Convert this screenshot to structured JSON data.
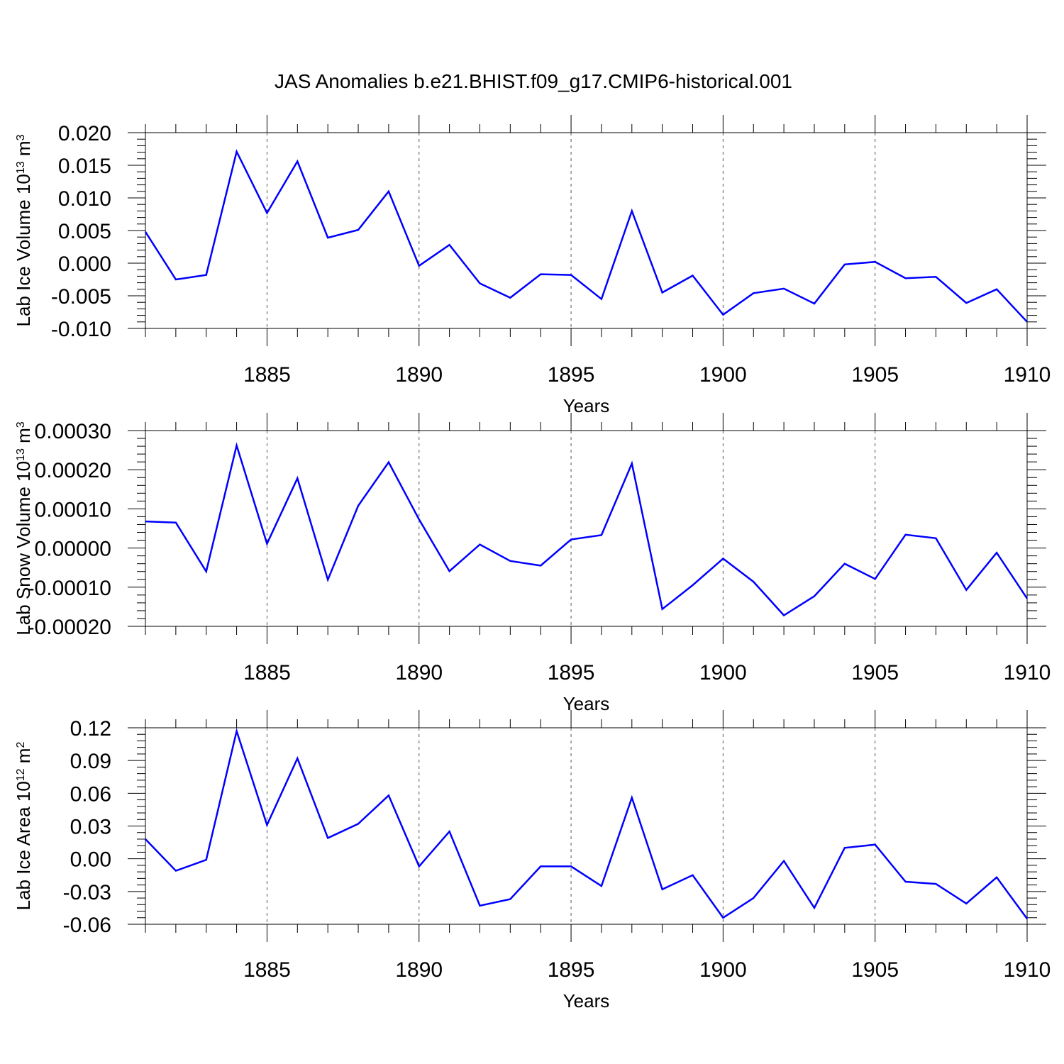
{
  "title": "JAS Anomalies b.e21.BHIST.f09_g17.CMIP6-historical.001",
  "line_color": "#0000ff",
  "chart_data": [
    {
      "type": "line",
      "xlabel": "Years",
      "ylabel": {
        "base": "Lab Ice Volume 10",
        "exp": "13",
        "unit": " m",
        "unit_exp": "3"
      },
      "xlim": [
        1881,
        1910
      ],
      "ylim": [
        -0.01,
        0.02
      ],
      "xticks": [
        1885,
        1890,
        1895,
        1900,
        1905,
        1910
      ],
      "yticks": [
        -0.01,
        -0.005,
        0.0,
        0.005,
        0.01,
        0.015,
        0.02
      ],
      "ytick_labels": [
        "-0.010",
        "-0.005",
        "0.000",
        "0.005",
        "0.010",
        "0.015",
        "0.020"
      ],
      "x": [
        1881,
        1882,
        1883,
        1884,
        1885,
        1886,
        1887,
        1888,
        1889,
        1890,
        1891,
        1892,
        1893,
        1894,
        1895,
        1896,
        1897,
        1898,
        1899,
        1900,
        1901,
        1902,
        1903,
        1904,
        1905,
        1906,
        1907,
        1908,
        1909,
        1910
      ],
      "values": [
        0.0048,
        -0.0025,
        -0.0018,
        0.0171,
        0.0077,
        0.0156,
        0.0039,
        0.0051,
        0.011,
        -0.0004,
        0.0028,
        -0.0031,
        -0.0053,
        -0.0017,
        -0.0018,
        -0.0055,
        0.008,
        -0.0045,
        -0.0019,
        -0.0079,
        -0.0046,
        -0.0039,
        -0.0062,
        -0.0002,
        0.0002,
        -0.0023,
        -0.0021,
        -0.0061,
        -0.004,
        -0.009
      ]
    },
    {
      "type": "line",
      "xlabel": "Years",
      "ylabel": {
        "base": "Lab Snow Volume 10",
        "exp": "13",
        "unit": " m",
        "unit_exp": "3"
      },
      "xlim": [
        1881,
        1910
      ],
      "ylim": [
        -0.0002,
        0.0003
      ],
      "xticks": [
        1885,
        1890,
        1895,
        1900,
        1905,
        1910
      ],
      "yticks": [
        -0.0002,
        -0.0001,
        0.0,
        0.0001,
        0.0002,
        0.0003
      ],
      "ytick_labels": [
        "-0.00020",
        "-0.00010",
        "0.00000",
        "0.00010",
        "0.00020",
        "0.00030"
      ],
      "x": [
        1881,
        1882,
        1883,
        1884,
        1885,
        1886,
        1887,
        1888,
        1889,
        1890,
        1891,
        1892,
        1893,
        1894,
        1895,
        1896,
        1897,
        1898,
        1899,
        1900,
        1901,
        1902,
        1903,
        1904,
        1905,
        1906,
        1907,
        1908,
        1909,
        1910
      ],
      "values": [
        6.8e-05,
        6.5e-05,
        -6e-05,
        0.000262,
        1.1e-05,
        0.000178,
        -8.1e-05,
        0.000108,
        0.000219,
        7.3e-05,
        -5.9e-05,
        9e-06,
        -3.3e-05,
        -4.5e-05,
        2.2e-05,
        3.3e-05,
        0.000216,
        -0.000156,
        -9.5e-05,
        -2.7e-05,
        -8.6e-05,
        -0.000172,
        -0.000123,
        -4e-05,
        -7.9e-05,
        3.4e-05,
        2.5e-05,
        -0.000107,
        -1.2e-05,
        -0.000129
      ]
    },
    {
      "type": "line",
      "xlabel": "Years",
      "ylabel": {
        "base": "Lab Ice Area 10",
        "exp": "12",
        "unit": " m",
        "unit_exp": "2"
      },
      "xlim": [
        1881,
        1910
      ],
      "ylim": [
        -0.06,
        0.12
      ],
      "xticks": [
        1885,
        1890,
        1895,
        1900,
        1905,
        1910
      ],
      "yticks": [
        -0.06,
        -0.03,
        0.0,
        0.03,
        0.06,
        0.09,
        0.12
      ],
      "ytick_labels": [
        "-0.06",
        "-0.03",
        "0.00",
        "0.03",
        "0.06",
        "0.09",
        "0.12"
      ],
      "x": [
        1881,
        1882,
        1883,
        1884,
        1885,
        1886,
        1887,
        1888,
        1889,
        1890,
        1891,
        1892,
        1893,
        1894,
        1895,
        1896,
        1897,
        1898,
        1899,
        1900,
        1901,
        1902,
        1903,
        1904,
        1905,
        1906,
        1907,
        1908,
        1909,
        1910
      ],
      "values": [
        0.018,
        -0.011,
        -0.001,
        0.117,
        0.031,
        0.092,
        0.019,
        0.032,
        0.058,
        -0.007,
        0.025,
        -0.043,
        -0.037,
        -0.007,
        -0.007,
        -0.025,
        0.056,
        -0.028,
        -0.015,
        -0.054,
        -0.036,
        -0.002,
        -0.045,
        0.01,
        0.013,
        -0.021,
        -0.023,
        -0.041,
        -0.017,
        -0.055
      ]
    }
  ]
}
